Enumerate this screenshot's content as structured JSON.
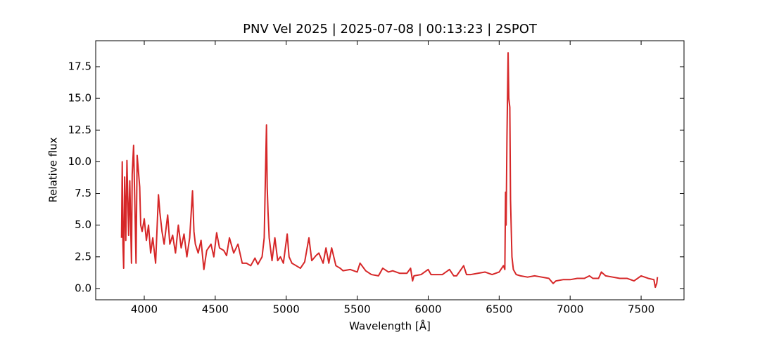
{
  "chart_data": {
    "type": "line",
    "title": "PNV Vel 2025 | 2025-07-08 | 00:13:23 | 2SPOT",
    "xlabel": "Wavelength [Å]",
    "ylabel": "Relative flux",
    "xlim": [
      3658,
      7802
    ],
    "ylim": [
      -0.89,
      19.55
    ],
    "xticks": [
      4000,
      4500,
      5000,
      5500,
      6000,
      6500,
      7000,
      7500
    ],
    "yticks": [
      {
        "value": 0,
        "label": "0.0"
      },
      2.5,
      {
        "value": 5,
        "label": "5.0"
      },
      7.5,
      {
        "value": 10,
        "label": "10.0"
      },
      12.5,
      {
        "value": 15,
        "label": "15.0"
      },
      17.5
    ],
    "series": [
      {
        "name": "PNV Vel 2025",
        "color": "#d62728",
        "x": [
          3840,
          3845,
          3850,
          3855,
          3862,
          3870,
          3878,
          3890,
          3898,
          3910,
          3915,
          3925,
          3935,
          3942,
          3950,
          3968,
          3975,
          3985,
          4000,
          4015,
          4030,
          4045,
          4060,
          4080,
          4100,
          4110,
          4125,
          4140,
          4165,
          4180,
          4200,
          4220,
          4240,
          4260,
          4280,
          4300,
          4320,
          4340,
          4350,
          4360,
          4380,
          4400,
          4420,
          4440,
          4470,
          4490,
          4510,
          4530,
          4560,
          4580,
          4600,
          4630,
          4660,
          4690,
          4720,
          4750,
          4780,
          4800,
          4830,
          4845,
          4852,
          4861,
          4866,
          4872,
          4880,
          4900,
          4920,
          4940,
          4959,
          4980,
          5007,
          5020,
          5040,
          5070,
          5100,
          5130,
          5160,
          5180,
          5210,
          5230,
          5260,
          5280,
          5300,
          5320,
          5350,
          5380,
          5400,
          5450,
          5500,
          5520,
          5560,
          5600,
          5650,
          5680,
          5720,
          5750,
          5800,
          5850,
          5876,
          5890,
          5900,
          5950,
          6000,
          6020,
          6050,
          6100,
          6150,
          6180,
          6200,
          6250,
          6270,
          6300,
          6350,
          6400,
          6450,
          6500,
          6530,
          6540,
          6545,
          6549,
          6555,
          6563,
          6568,
          6575,
          6580,
          6590,
          6600,
          6620,
          6650,
          6700,
          6750,
          6800,
          6850,
          6880,
          6900,
          6950,
          7000,
          7050,
          7100,
          7136,
          7160,
          7200,
          7220,
          7250,
          7300,
          7350,
          7400,
          7450,
          7500,
          7550,
          7590,
          7600,
          7610,
          7615
        ],
        "values": [
          4.0,
          10.0,
          3.5,
          1.6,
          8.8,
          3.8,
          10.1,
          4.2,
          8.5,
          2.0,
          9.0,
          11.3,
          6.0,
          2.0,
          10.5,
          8.0,
          5.0,
          4.5,
          5.5,
          3.8,
          5.0,
          2.8,
          4.0,
          2.0,
          7.4,
          6.0,
          4.5,
          3.5,
          5.8,
          3.5,
          4.2,
          2.8,
          5.0,
          3.2,
          4.3,
          2.5,
          4.0,
          7.7,
          4.5,
          3.5,
          2.8,
          3.8,
          1.5,
          3.0,
          3.5,
          2.5,
          4.4,
          3.2,
          3.0,
          2.6,
          4.0,
          2.8,
          3.5,
          2.0,
          2.0,
          1.8,
          2.4,
          1.9,
          2.5,
          4.0,
          8.0,
          12.9,
          8.0,
          6.0,
          4.0,
          2.2,
          4.0,
          2.2,
          2.5,
          2.0,
          4.3,
          2.5,
          2.0,
          1.8,
          1.6,
          2.1,
          4.0,
          2.2,
          2.6,
          2.8,
          2.0,
          3.2,
          2.0,
          3.2,
          1.8,
          1.6,
          1.4,
          1.5,
          1.3,
          2.0,
          1.4,
          1.1,
          1.0,
          1.6,
          1.3,
          1.4,
          1.2,
          1.2,
          1.6,
          0.6,
          1.0,
          1.1,
          1.5,
          1.1,
          1.1,
          1.1,
          1.5,
          1.0,
          1.0,
          1.8,
          1.1,
          1.1,
          1.2,
          1.3,
          1.1,
          1.3,
          1.8,
          1.5,
          7.6,
          5.0,
          12.0,
          18.6,
          15.0,
          14.3,
          7.0,
          2.5,
          1.5,
          1.1,
          1.0,
          0.9,
          1.0,
          0.9,
          0.8,
          0.4,
          0.6,
          0.7,
          0.7,
          0.8,
          0.8,
          1.0,
          0.8,
          0.8,
          1.3,
          1.0,
          0.9,
          0.8,
          0.8,
          0.6,
          1.0,
          0.8,
          0.7,
          0.1,
          0.4,
          0.9
        ]
      }
    ]
  }
}
